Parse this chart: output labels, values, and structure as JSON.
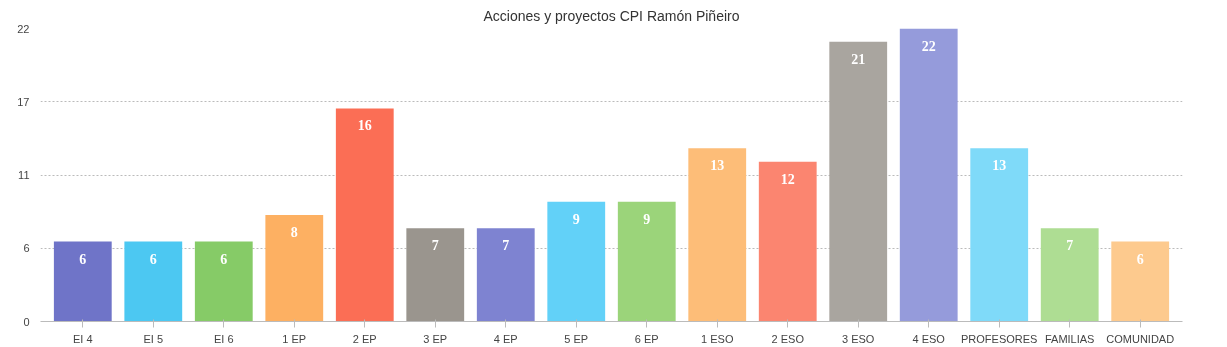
{
  "chart_data": {
    "type": "bar",
    "title": "Acciones y proyectos CPI Ramón Piñeiro",
    "categories": [
      "EI 4",
      "EI 5",
      "EI 6",
      "1 EP",
      "2 EP",
      "3 EP",
      "4 EP",
      "5 EP",
      "6 EP",
      "1 ESO",
      "2 ESO",
      "3 ESO",
      "4 ESO",
      "PROFESORES",
      "FAMILIAS",
      "COMUNIDAD"
    ],
    "values": [
      6,
      6,
      6,
      8,
      16,
      7,
      7,
      9,
      9,
      13,
      12,
      21,
      22,
      13,
      7,
      6
    ],
    "colors": [
      "#6f74c8",
      "#4cc8f2",
      "#86cb67",
      "#fdb062",
      "#fb6e55",
      "#9a958e",
      "#7e83d1",
      "#62d1f8",
      "#9bd47a",
      "#fdbd78",
      "#fb8570",
      "#a9a59f",
      "#959bdb",
      "#7fdaf9",
      "#aedd93",
      "#fdca8e"
    ],
    "ylim": [
      0,
      22
    ],
    "yticks": [
      0,
      {
        "value": 5.5,
        "label": "6"
      },
      11,
      {
        "value": 16.5,
        "label": "17"
      },
      22
    ],
    "grid": "y",
    "data_labels": true
  }
}
